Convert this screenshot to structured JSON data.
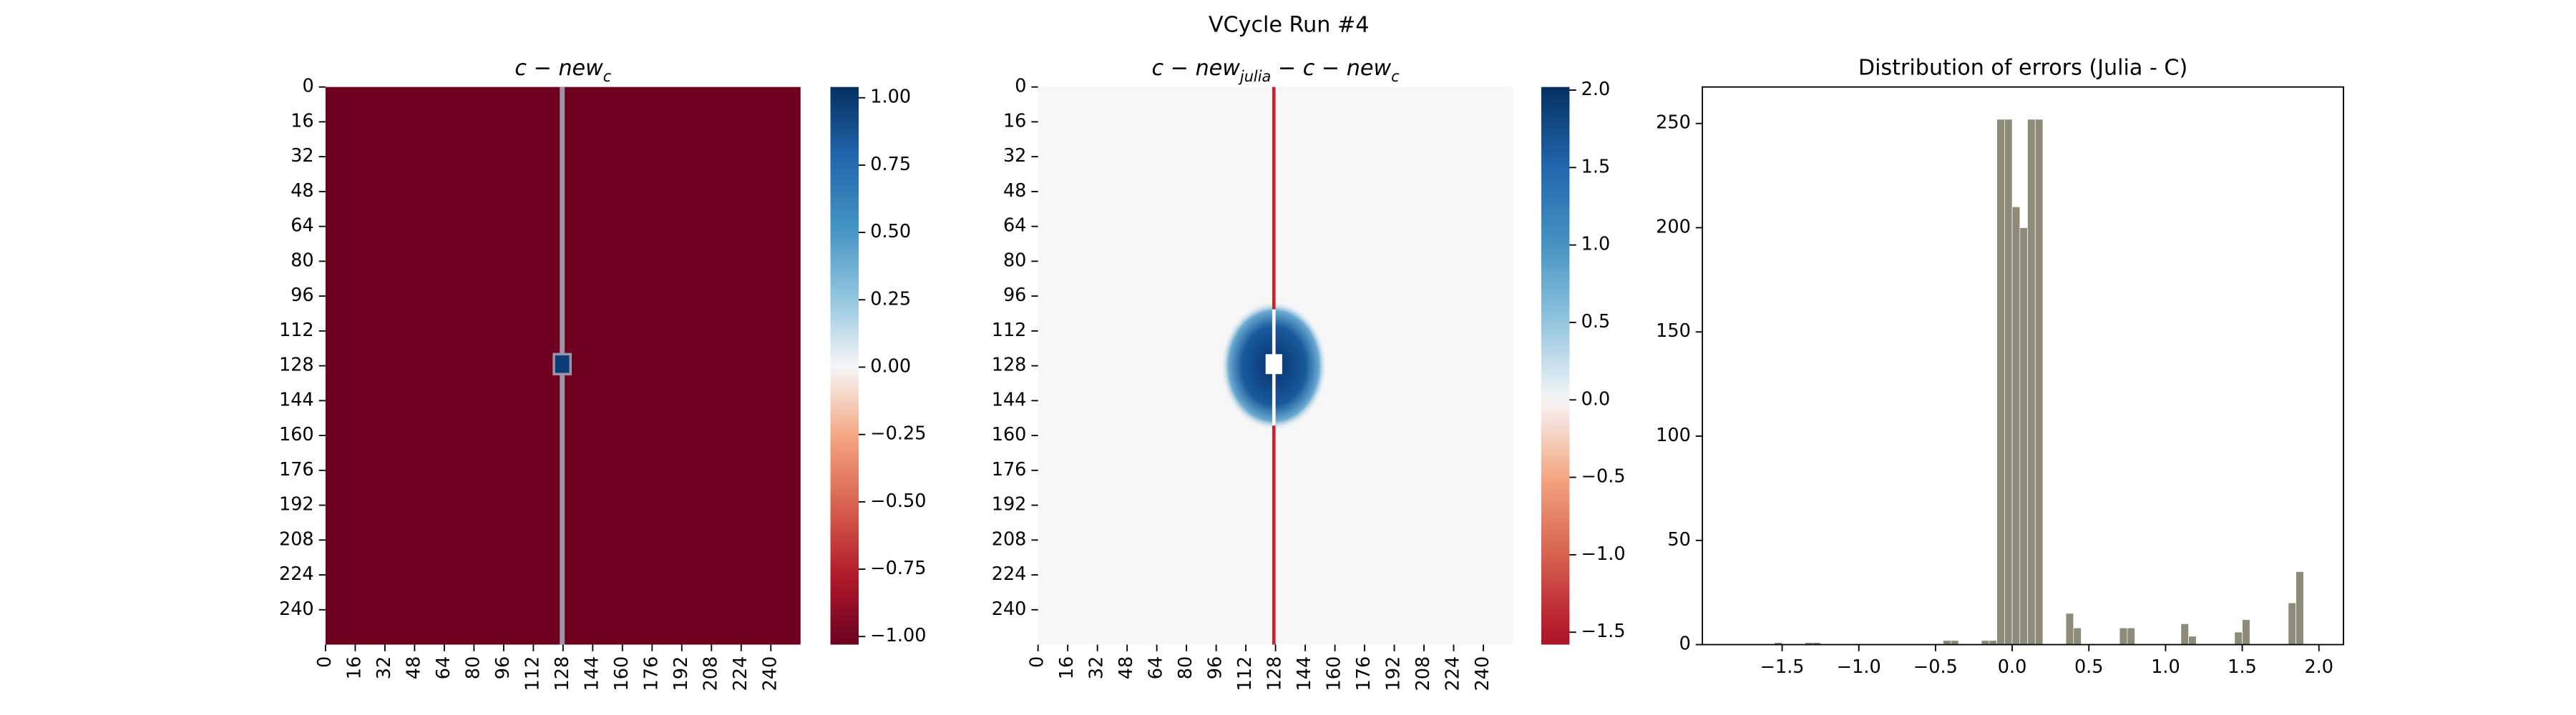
{
  "title": "VCycle Run #4",
  "chart_data": [
    {
      "type": "heatmap",
      "title_parts": [
        "c − new",
        "c"
      ],
      "xlim": [
        0,
        256
      ],
      "ylim": [
        0,
        256
      ],
      "xticks": [
        0,
        16,
        32,
        48,
        64,
        80,
        96,
        112,
        128,
        144,
        160,
        176,
        192,
        208,
        224,
        240
      ],
      "yticks": [
        0,
        16,
        32,
        48,
        64,
        80,
        96,
        112,
        128,
        144,
        160,
        176,
        192,
        208,
        224,
        240
      ],
      "cmap": "RdBu",
      "clim": [
        -1.03,
        1.04
      ],
      "cticks": [
        {
          "value": 1,
          "label": "1.00"
        },
        {
          "value": 0.75,
          "label": "0.75"
        },
        {
          "value": 0.5,
          "label": "0.50"
        },
        {
          "value": 0.25,
          "label": "0.25"
        },
        {
          "value": 0,
          "label": "0.00"
        },
        {
          "value": -0.25,
          "label": "−0.25"
        },
        {
          "value": -0.5,
          "label": "−0.50"
        },
        {
          "value": -0.75,
          "label": "−0.75"
        },
        {
          "value": -1,
          "label": "−1.00"
        }
      ]
    },
    {
      "type": "heatmap",
      "title_parts": [
        "c − new",
        "julia",
        " − c − new",
        "c"
      ],
      "xlim": [
        0,
        256
      ],
      "ylim": [
        0,
        256
      ],
      "xticks": [
        0,
        16,
        32,
        48,
        64,
        80,
        96,
        112,
        128,
        144,
        160,
        176,
        192,
        208,
        224,
        240
      ],
      "yticks": [
        0,
        16,
        32,
        48,
        64,
        80,
        96,
        112,
        128,
        144,
        160,
        176,
        192,
        208,
        224,
        240
      ],
      "cmap": "RdBu",
      "clim": [
        -1.58,
        2.02
      ],
      "cticks": [
        {
          "value": 2,
          "label": "2.0"
        },
        1.5,
        {
          "value": 1,
          "label": "1.0"
        },
        0.5,
        {
          "value": 0,
          "label": "0.0"
        },
        {
          "value": -0.5,
          "label": "−0.5"
        },
        {
          "value": -1,
          "label": "−1.0"
        },
        {
          "value": -1.5,
          "label": "−1.5"
        }
      ]
    },
    {
      "type": "histogram",
      "title": "Distribution of errors (Julia - C)",
      "color": "#8e8b78",
      "xlim": [
        -2.02,
        2.16
      ],
      "ylim": [
        0,
        267.5
      ],
      "xticks": [
        {
          "value": -1.5,
          "label": "−1.5"
        },
        {
          "value": -1,
          "label": "−1.0"
        },
        {
          "value": -0.5,
          "label": "−0.5"
        },
        {
          "value": 0,
          "label": "0.0"
        },
        0.5,
        {
          "value": 1,
          "label": "1.0"
        },
        1.5,
        {
          "value": 2,
          "label": "2.0"
        }
      ],
      "yticks": [
        0,
        50,
        100,
        150,
        200,
        250
      ],
      "bins": [
        -1.6,
        -1.55,
        -1.5,
        -1.45,
        -1.4,
        -1.35,
        -1.3,
        -1.25,
        -1.2,
        -1.15,
        -1.1,
        -1.05,
        -1,
        -0.95,
        -0.9,
        -0.85,
        -0.8,
        -0.75,
        -0.7,
        -0.65,
        -0.6,
        -0.55,
        -0.5,
        -0.45,
        -0.4,
        -0.35,
        -0.3,
        -0.25,
        -0.2,
        -0.15,
        -0.1,
        -0.05,
        0,
        0.05,
        0.1,
        0.15,
        0.2,
        0.25,
        0.3,
        0.35,
        0.4,
        0.45,
        0.5,
        0.55,
        0.6,
        0.65,
        0.7,
        0.75,
        0.8,
        0.85,
        0.9,
        0.95,
        1,
        1.05,
        1.1,
        1.15,
        1.2,
        1.25,
        1.3,
        1.35,
        1.4,
        1.45,
        1.5,
        1.55,
        1.6,
        1.65,
        1.7,
        1.75,
        1.8,
        1.85,
        1.9
      ],
      "counts": [
        0,
        1,
        0,
        0,
        0,
        1,
        1,
        0,
        0,
        0,
        0,
        0,
        0,
        0,
        0,
        0,
        0,
        0,
        0,
        0,
        0,
        0,
        0,
        2,
        2,
        0,
        0,
        0,
        2,
        2,
        252,
        252,
        210,
        200,
        252,
        252,
        0,
        0,
        0,
        15,
        8,
        0,
        0,
        0,
        0,
        0,
        8,
        8,
        0,
        0,
        0,
        0,
        0,
        0,
        10,
        4,
        0,
        0,
        0,
        0,
        0,
        6,
        12,
        0,
        0,
        0,
        0,
        0,
        20,
        35
      ]
    }
  ]
}
